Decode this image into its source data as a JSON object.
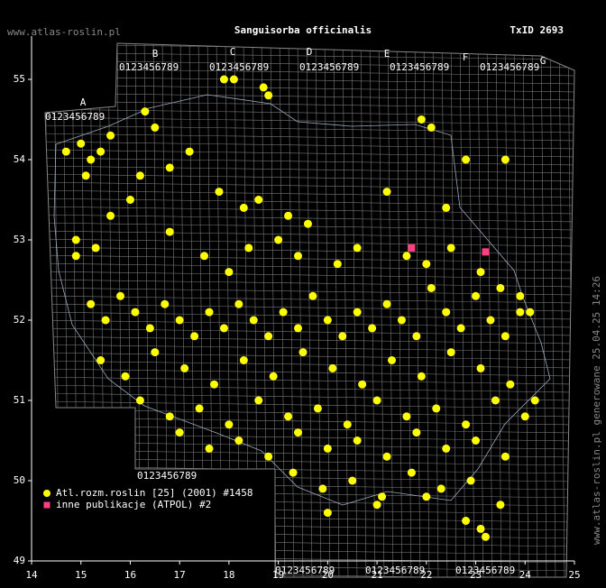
{
  "chart_data": {
    "type": "scatter",
    "site": "www.atlas-roslin.pl",
    "title": "Sanguisorba officinalis",
    "taxon_id": "TxID 2693",
    "footer": "www.atlas-roslin.pl generowane 25.04.25 14:26",
    "grid_letters": [
      "A",
      "B",
      "C",
      "D",
      "E",
      "F",
      "G"
    ],
    "grid_digits": "0123456789",
    "xlim": [
      14,
      25
    ],
    "ylim": [
      49,
      55.5
    ],
    "xticks": [
      14,
      15,
      16,
      17,
      18,
      19,
      20,
      21,
      22,
      23,
      24,
      25
    ],
    "yticks": [
      49,
      50,
      51,
      52,
      53,
      54,
      55
    ],
    "legend": "bottom-left",
    "series": [
      {
        "name": "Atl.rozm.roslin [25] (2001) #1458",
        "color": "#ffff00",
        "marker": "circle",
        "x": [
          14.7,
          15.0,
          15.2,
          15.4,
          15.1,
          15.6,
          16.3,
          16.5,
          17.9,
          18.1,
          18.7,
          18.8,
          17.2,
          16.8,
          16.2,
          16.0,
          15.6,
          14.9,
          14.9,
          15.3,
          16.8,
          17.8,
          18.3,
          18.6,
          19.2,
          19.6,
          19.0,
          21.9,
          22.1,
          22.8,
          22.4,
          21.2,
          23.6,
          17.5,
          18.0,
          18.4,
          19.4,
          20.2,
          20.6,
          21.6,
          22.0,
          22.5,
          23.1,
          23.5,
          23.9,
          24.1,
          15.2,
          15.5,
          15.8,
          16.1,
          16.4,
          16.7,
          17.0,
          17.3,
          17.6,
          17.9,
          18.2,
          18.5,
          18.8,
          19.1,
          19.4,
          19.7,
          20.0,
          20.3,
          20.6,
          20.9,
          21.2,
          21.5,
          21.8,
          22.1,
          22.4,
          22.7,
          23.0,
          23.3,
          23.6,
          23.9,
          15.4,
          15.9,
          16.5,
          17.1,
          17.7,
          18.3,
          18.9,
          19.5,
          20.1,
          20.7,
          21.3,
          21.9,
          22.5,
          23.1,
          23.7,
          24.2,
          16.2,
          16.8,
          17.4,
          18.0,
          18.6,
          19.2,
          19.8,
          20.4,
          21.0,
          21.6,
          22.2,
          22.8,
          23.4,
          24.0,
          17.0,
          17.6,
          18.2,
          18.8,
          19.4,
          20.0,
          20.6,
          21.2,
          21.8,
          22.4,
          23.0,
          23.6,
          19.3,
          19.9,
          20.5,
          21.1,
          21.7,
          22.3,
          22.9,
          23.5,
          20.0,
          21.0,
          22.0,
          22.8,
          23.1,
          23.2
        ],
        "y": [
          54.1,
          54.2,
          54.0,
          54.1,
          53.8,
          54.3,
          54.6,
          54.4,
          55.0,
          55.0,
          54.9,
          54.8,
          54.1,
          53.9,
          53.8,
          53.5,
          53.3,
          53.0,
          52.8,
          52.9,
          53.1,
          53.6,
          53.4,
          53.5,
          53.3,
          53.2,
          53.0,
          54.5,
          54.4,
          54.0,
          53.4,
          53.6,
          54.0,
          52.8,
          52.6,
          52.9,
          52.8,
          52.7,
          52.9,
          52.8,
          52.7,
          52.9,
          52.6,
          52.4,
          52.3,
          52.1,
          52.2,
          52.0,
          52.3,
          52.1,
          51.9,
          52.2,
          52.0,
          51.8,
          52.1,
          51.9,
          52.2,
          52.0,
          51.8,
          52.1,
          51.9,
          52.3,
          52.0,
          51.8,
          52.1,
          51.9,
          52.2,
          52.0,
          51.8,
          52.4,
          52.1,
          51.9,
          52.3,
          52.0,
          51.8,
          52.1,
          51.5,
          51.3,
          51.6,
          51.4,
          51.2,
          51.5,
          51.3,
          51.6,
          51.4,
          51.2,
          51.5,
          51.3,
          51.6,
          51.4,
          51.2,
          51.0,
          51.0,
          50.8,
          50.9,
          50.7,
          51.0,
          50.8,
          50.9,
          50.7,
          51.0,
          50.8,
          50.9,
          50.7,
          51.0,
          50.8,
          50.6,
          50.4,
          50.5,
          50.3,
          50.6,
          50.4,
          50.5,
          50.3,
          50.6,
          50.4,
          50.5,
          50.3,
          50.1,
          49.9,
          50.0,
          49.8,
          50.1,
          49.9,
          50.0,
          49.7,
          49.6,
          49.7,
          49.8,
          49.5,
          49.4,
          49.3
        ]
      },
      {
        "name": "inne publikacje (ATPOL) #2",
        "color": "#ff4080",
        "marker": "square",
        "x": [
          21.7,
          23.2
        ],
        "y": [
          52.9,
          52.85
        ]
      }
    ]
  }
}
